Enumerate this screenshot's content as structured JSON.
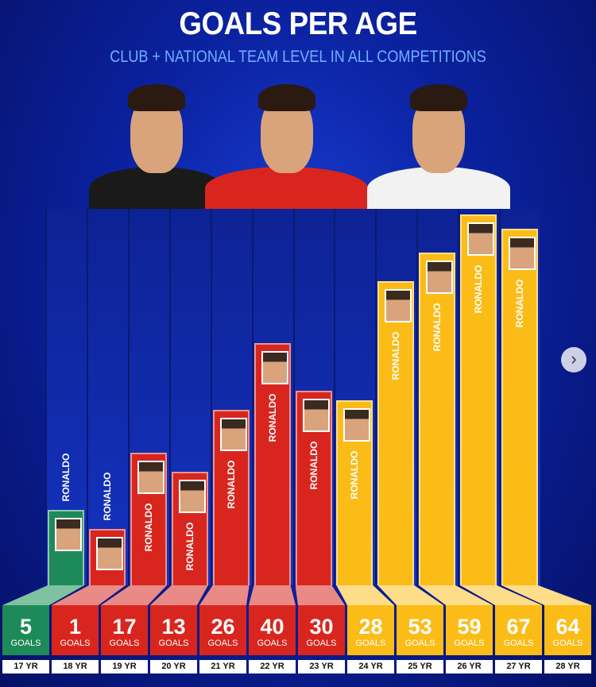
{
  "chart_data": {
    "type": "bar",
    "title": "GOALS PER AGE",
    "subtitle": "CLUB + NATIONAL TEAM LEVEL IN ALL COMPETITIONS",
    "categories": [
      "17 YR",
      "18 YR",
      "19 YR",
      "20 YR",
      "21 YR",
      "22 YR",
      "23 YR",
      "24 YR",
      "25 YR",
      "26 YR",
      "27 YR",
      "28 YR"
    ],
    "values": [
      5,
      1,
      17,
      13,
      26,
      40,
      30,
      28,
      53,
      59,
      67,
      64
    ],
    "unit": "GOALS",
    "bar_label": "RONALDO",
    "colors": [
      "#1e8a5a",
      "#d8261e",
      "#d8261e",
      "#d8261e",
      "#d8261e",
      "#d8261e",
      "#d8261e",
      "#fbbc18",
      "#fbbc18",
      "#fbbc18",
      "#fbbc18",
      "#fbbc18"
    ],
    "top_colors": [
      "#7fc2a0",
      "#ea8a86",
      "#ea8a86",
      "#ea8a86",
      "#ea8a86",
      "#ea8a86",
      "#ea8a86",
      "#fddc8a",
      "#fddc8a",
      "#fddc8a",
      "#fddc8a",
      "#fddc8a"
    ]
  },
  "players": [
    {
      "shirt": "#1a1a1a"
    },
    {
      "shirt": "#d8261e"
    },
    {
      "shirt": "#f2f2f2"
    }
  ],
  "next_icon": "chevron-right-icon"
}
